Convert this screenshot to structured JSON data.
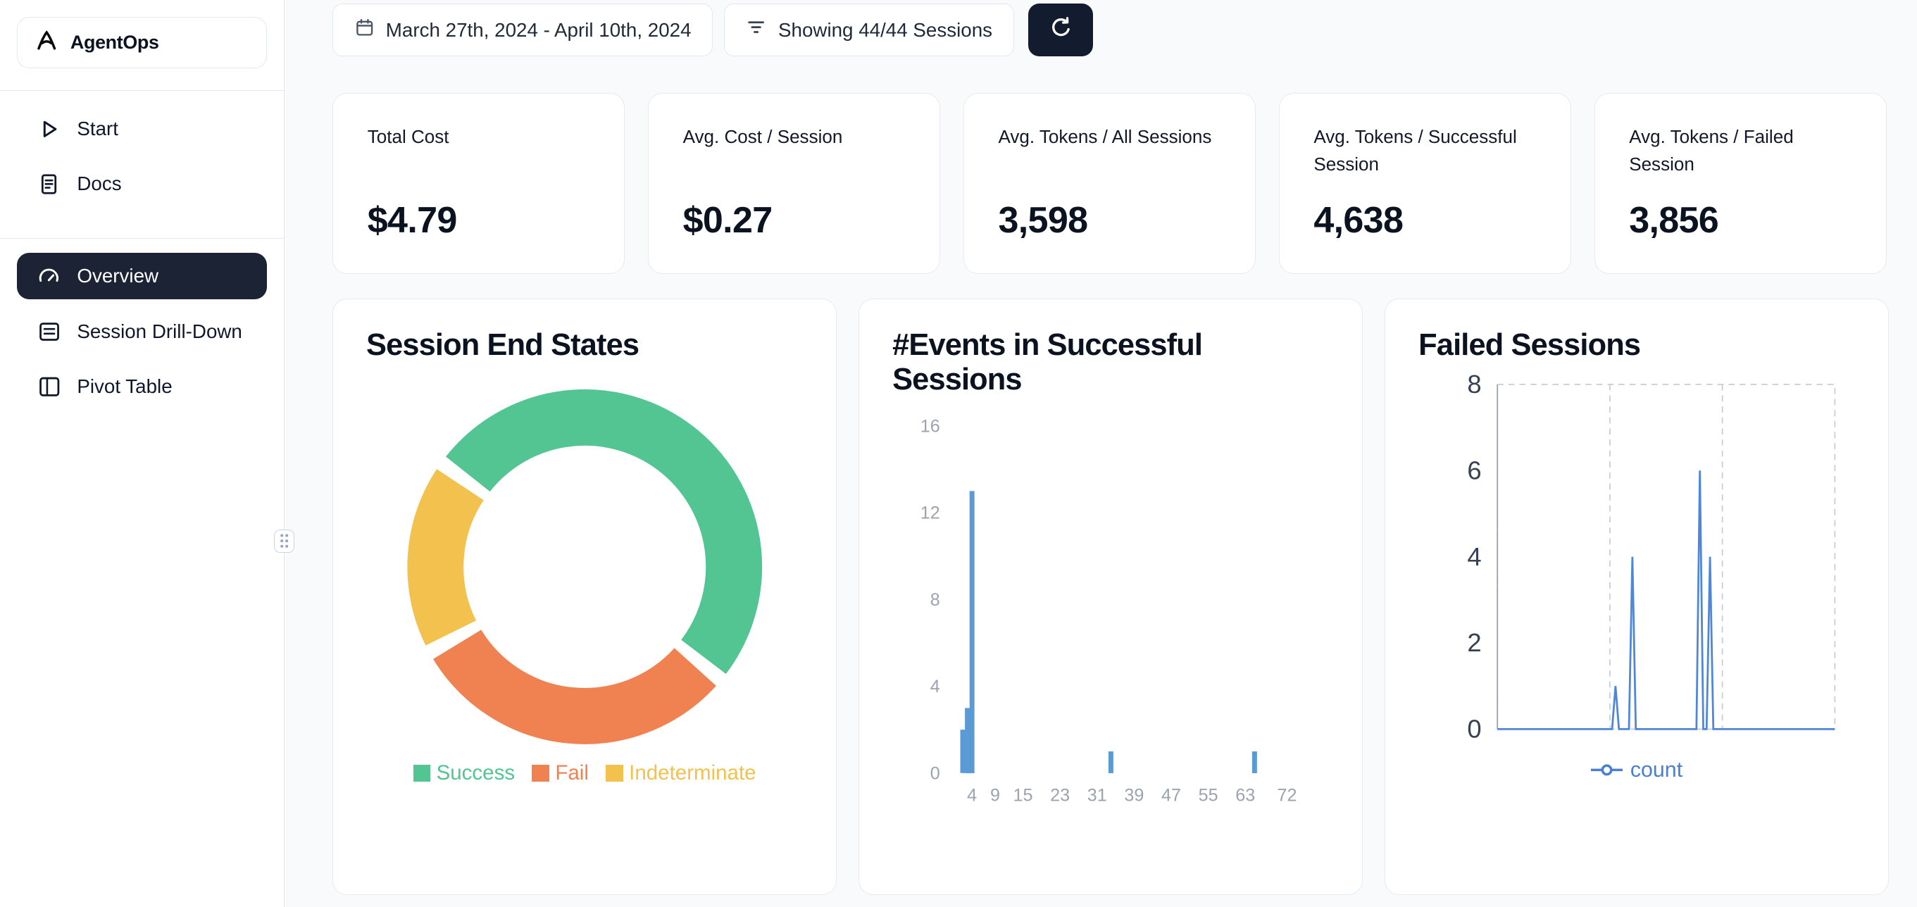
{
  "app": {
    "name": "AgentOps"
  },
  "sidebar": {
    "top": [
      {
        "label": "Start"
      },
      {
        "label": "Docs"
      }
    ],
    "main": [
      {
        "label": "Overview",
        "active": true
      },
      {
        "label": "Session Drill-Down",
        "active": false
      },
      {
        "label": "Pivot Table",
        "active": false
      }
    ]
  },
  "topbar": {
    "date_range": "March 27th, 2024 - April 10th, 2024",
    "sessions": "Showing 44/44 Sessions"
  },
  "stats": [
    {
      "label": "Total Cost",
      "value": "$4.79"
    },
    {
      "label": "Avg. Cost / Session",
      "value": "$0.27"
    },
    {
      "label": "Avg. Tokens / All Sessions",
      "value": "3,598"
    },
    {
      "label": "Avg. Tokens / Successful Session",
      "value": "4,638"
    },
    {
      "label": "Avg. Tokens / Failed Session",
      "value": "3,856"
    }
  ],
  "chart_data": [
    {
      "type": "pie",
      "variant": "donut",
      "title": "Session End States",
      "labels": [
        "Success",
        "Fail",
        "Indeterminate"
      ],
      "values_pct": [
        51,
        31,
        18
      ],
      "colors": [
        "#52c593",
        "#ef8250",
        "#f2c14e"
      ],
      "start_angle_deg": 306,
      "legend_position": "bottom"
    },
    {
      "type": "bar",
      "title": "#Events in Successful Sessions",
      "xlabel": "",
      "ylabel": "",
      "xlim": [
        0,
        76
      ],
      "ylim": [
        0,
        16
      ],
      "xticks": [
        4,
        9,
        15,
        23,
        31,
        39,
        47,
        55,
        63,
        72
      ],
      "yticks": [
        0,
        4,
        8,
        12,
        16
      ],
      "bars": [
        {
          "x": 2,
          "count": 2
        },
        {
          "x": 3,
          "count": 3
        },
        {
          "x": 4,
          "count": 13
        },
        {
          "x": 34,
          "count": 1
        },
        {
          "x": 65,
          "count": 1
        }
      ],
      "bar_color": "#5b9bd5",
      "grid": false
    },
    {
      "type": "line",
      "title": "Failed Sessions",
      "series_name": "count",
      "xlim": [
        0,
        100
      ],
      "ylim": [
        0,
        8
      ],
      "yticks": [
        0,
        2,
        4,
        6,
        8
      ],
      "points": [
        [
          0,
          0
        ],
        [
          34,
          0
        ],
        [
          35,
          1
        ],
        [
          36,
          0
        ],
        [
          39,
          0
        ],
        [
          40,
          4
        ],
        [
          41,
          0
        ],
        [
          59,
          0
        ],
        [
          60,
          6
        ],
        [
          61,
          0
        ],
        [
          62,
          0
        ],
        [
          63,
          4
        ],
        [
          64,
          0
        ],
        [
          100,
          0
        ]
      ],
      "line_color": "#4f86d8",
      "legend_color": "#4b7fd0",
      "grid": "dashed",
      "legend_position": "bottom"
    }
  ]
}
